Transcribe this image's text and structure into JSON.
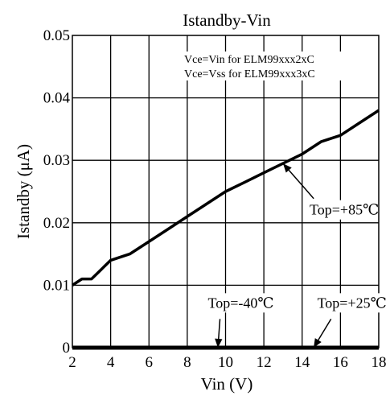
{
  "chart_data": {
    "type": "line",
    "title": "Istandby-Vin",
    "xlabel": "Vin (V)",
    "ylabel": "Istandby (μA)",
    "xlim": [
      2,
      18
    ],
    "ylim": [
      0,
      0.05
    ],
    "x_ticks": [
      "2",
      "4",
      "6",
      "8",
      "10",
      "12",
      "14",
      "16",
      "18"
    ],
    "y_ticks": [
      "0",
      "0.01",
      "0.02",
      "0.03",
      "0.04",
      "0.05"
    ],
    "grid": true,
    "notes": [
      "Vce=Vin for ELM99xxx2xC",
      "Vce=Vss for ELM99xxx3xC"
    ],
    "series": [
      {
        "name": "Top=+85℃",
        "x": [
          2.0,
          2.5,
          3.0,
          4.0,
          5.0,
          6.0,
          7.0,
          8.0,
          9.0,
          10.0,
          11.0,
          12.0,
          13.0,
          14.0,
          15.0,
          16.0,
          17.0,
          18.0
        ],
        "y": [
          0.01,
          0.011,
          0.011,
          0.014,
          0.015,
          0.017,
          0.019,
          0.021,
          0.023,
          0.025,
          0.0265,
          0.028,
          0.0295,
          0.031,
          0.033,
          0.034,
          0.036,
          0.038
        ]
      },
      {
        "name": "Top=-40℃",
        "x": [
          2,
          18
        ],
        "y": [
          0,
          0
        ]
      },
      {
        "name": "Top=+25℃",
        "x": [
          2,
          18
        ],
        "y": [
          0,
          0
        ]
      }
    ],
    "annotations": [
      {
        "text": "Top=+85℃",
        "x": 16.2,
        "y": 0.0213,
        "arrow_to": [
          13.0,
          0.0295
        ]
      },
      {
        "text": "Top=-40℃",
        "x": 10.8,
        "y": 0.0064,
        "arrow_to": [
          9.6,
          0.0
        ]
      },
      {
        "text": "Top=+25℃",
        "x": 16.6,
        "y": 0.0064,
        "arrow_to": [
          14.6,
          0.0
        ]
      }
    ]
  }
}
